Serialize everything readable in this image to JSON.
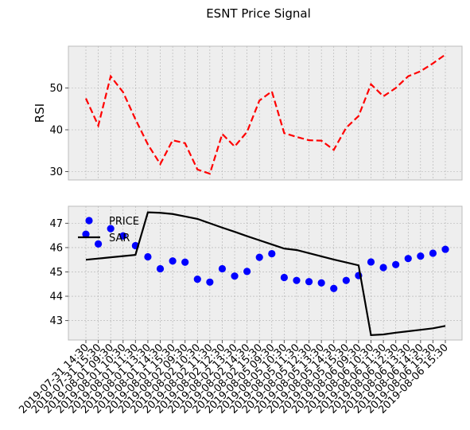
{
  "chart_data": {
    "title": "ESNT Price Signal",
    "x": [
      "2019-07-31 14:30",
      "2019-07-31 15:30",
      "2019-08-01 09:30",
      "2019-08-01 10:30",
      "2019-08-01 11:30",
      "2019-08-01 13:30",
      "2019-08-01 14:30",
      "2019-08-01 15:30",
      "2019-08-02 09:30",
      "2019-08-02 10:30",
      "2019-08-02 11:30",
      "2019-08-02 12:30",
      "2019-08-02 13:30",
      "2019-08-02 14:30",
      "2019-08-02 15:30",
      "2019-08-05 09:30",
      "2019-08-05 10:30",
      "2019-08-05 11:30",
      "2019-08-05 12:30",
      "2019-08-05 13:30",
      "2019-08-05 14:30",
      "2019-08-05 15:30",
      "2019-08-06 09:30",
      "2019-08-06 10:30",
      "2019-08-06 11:30",
      "2019-08-06 12:30",
      "2019-08-06 13:30",
      "2019-08-06 14:30",
      "2019-08-06 15:30",
      "2019-08-06 15:30"
    ],
    "charts": [
      {
        "type": "line",
        "ylabel": "RSI",
        "ylim": [
          28,
          60
        ],
        "yticks": [
          30,
          40,
          50
        ],
        "grid": true,
        "series": [
          {
            "color": "#ff0000",
            "style": "dashed",
            "values": [
              47.5,
              41.0,
              52.8,
              49.0,
              42.5,
              36.5,
              31.8,
              37.5,
              36.8,
              30.5,
              29.5,
              39.0,
              36.0,
              39.5,
              47.0,
              49.2,
              39.2,
              38.3,
              37.5,
              37.4,
              35.2,
              40.5,
              43.3,
              50.9,
              48.0,
              50.0,
              52.8,
              54.0,
              55.9,
              58.0
            ]
          }
        ]
      },
      {
        "type": "line",
        "ylim": [
          42.2,
          47.7
        ],
        "yticks": [
          43,
          44,
          45,
          46,
          47
        ],
        "grid": true,
        "legend": "top-left",
        "series": [
          {
            "name": "PRICE",
            "type": "scatter",
            "color": "#0000ff",
            "values": [
              46.55,
              46.15,
              46.78,
              46.48,
              46.08,
              45.62,
              45.13,
              45.45,
              45.4,
              44.7,
              44.58,
              45.13,
              44.83,
              45.02,
              45.6,
              45.75,
              44.77,
              44.65,
              44.6,
              44.55,
              44.32,
              44.65,
              44.85,
              45.41,
              45.18,
              45.3,
              45.55,
              45.65,
              45.77,
              45.93
            ]
          },
          {
            "name": "SAR",
            "type": "line",
            "color": "#000000",
            "values": [
              45.5,
              45.55,
              45.6,
              45.65,
              45.7,
              47.45,
              47.43,
              47.38,
              47.28,
              47.18,
              47.0,
              46.82,
              46.65,
              46.47,
              46.3,
              46.13,
              45.96,
              45.9,
              45.77,
              45.64,
              45.51,
              45.39,
              45.27,
              42.4,
              42.43,
              42.5,
              42.56,
              42.62,
              42.68,
              42.78
            ]
          }
        ]
      }
    ]
  },
  "colors": {
    "axes_bg": "#eeeeee",
    "grid": "#b0b0b0",
    "spine": "#bcbcbc"
  }
}
